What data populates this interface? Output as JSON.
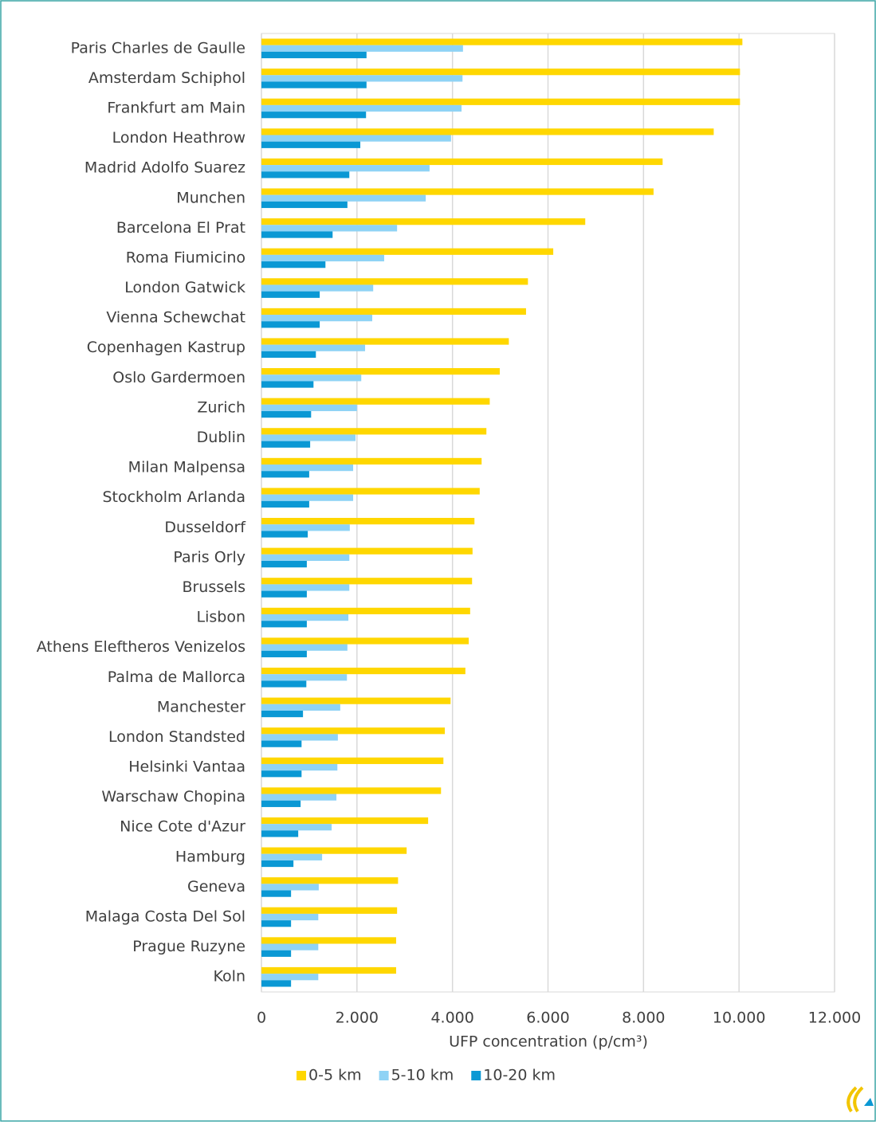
{
  "chart_data": {
    "type": "bar",
    "orientation": "horizontal",
    "x_label": "UFP concentration (p/cm³)",
    "categories": [
      "Paris Charles de Gaulle",
      "Amsterdam Schiphol",
      "Frankfurt am Main",
      "London Heathrow",
      "Madrid Adolfo Suarez",
      "Munchen",
      "Barcelona El Prat",
      "Roma Fiumicino",
      "London Gatwick",
      "Vienna Schewchat",
      "Copenhagen Kastrup",
      "Oslo Gardermoen",
      "Zurich",
      "Dublin",
      "Milan Malpensa",
      "Stockholm Arlanda",
      "Dusseldorf",
      "Paris Orly",
      "Brussels",
      "Lisbon",
      "Athens Eleftheros Venizelos",
      "Palma de Mallorca",
      "Manchester",
      "London Standsted",
      "Helsinki Vantaa",
      "Warschaw Chopina",
      "Nice Cote d'Azur",
      "Hamburg",
      "Geneva",
      "Malaga Costa Del Sol",
      "Prague Ruzyne",
      "Koln"
    ],
    "series": [
      {
        "name": "0-5 km",
        "color": "#ffd700",
        "values": [
          10070,
          10020,
          10020,
          9470,
          8400,
          8210,
          6780,
          6110,
          5580,
          5540,
          5180,
          4990,
          4780,
          4710,
          4610,
          4570,
          4460,
          4420,
          4410,
          4370,
          4340,
          4270,
          3960,
          3840,
          3810,
          3760,
          3490,
          3040,
          2860,
          2840,
          2820,
          2820
        ]
      },
      {
        "name": "5-10 km",
        "color": "#8fd3f5",
        "values": [
          4220,
          4210,
          4190,
          3970,
          3520,
          3440,
          2840,
          2570,
          2340,
          2320,
          2170,
          2090,
          2000,
          1970,
          1920,
          1920,
          1850,
          1840,
          1840,
          1820,
          1800,
          1790,
          1650,
          1600,
          1590,
          1570,
          1470,
          1270,
          1200,
          1190,
          1190,
          1190
        ]
      },
      {
        "name": "10-20 km",
        "color": "#0a98d4",
        "values": [
          2200,
          2200,
          2190,
          2070,
          1840,
          1800,
          1490,
          1340,
          1220,
          1220,
          1140,
          1090,
          1040,
          1020,
          1000,
          1000,
          970,
          950,
          950,
          950,
          950,
          940,
          870,
          840,
          840,
          820,
          770,
          670,
          620,
          620,
          620,
          620
        ]
      }
    ],
    "xlim": [
      0,
      12000
    ],
    "xticks": [
      0,
      {
        "value": 2000,
        "label": "2.000"
      },
      {
        "value": 4000,
        "label": "4.000"
      },
      {
        "value": 6000,
        "label": "6.000"
      },
      {
        "value": 8000,
        "label": "8.000"
      },
      {
        "value": 10000,
        "label": "10.000"
      },
      {
        "value": 12000,
        "label": "12.000"
      }
    ],
    "grid": true,
    "legend": "bottom"
  }
}
